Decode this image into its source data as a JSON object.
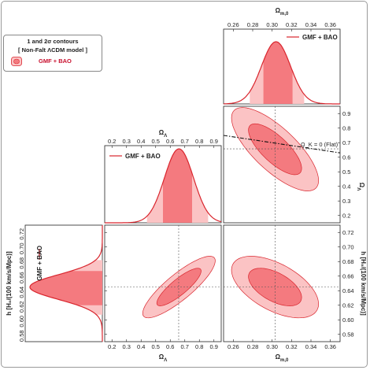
{
  "chart_data": {
    "type": "corner",
    "colors": {
      "line": "#d9252d",
      "fill1": "#f47a7f",
      "fill2": "#fbc3c4",
      "dash": "#555555"
    },
    "parameters": {
      "om": {
        "label": "Ω_{m,0}",
        "range": [
          0.25,
          0.37
        ],
        "ticks": [
          "0.26",
          "0.28",
          "0.30",
          "0.32",
          "0.34",
          "0.36"
        ]
      },
      "ol": {
        "label": "Ω_Λ",
        "range": [
          0.15,
          0.95
        ],
        "ticks": [
          "0.2",
          "0.3",
          "0.4",
          "0.5",
          "0.6",
          "0.7",
          "0.8",
          "0.9"
        ]
      },
      "h": {
        "label": "h [H_0/(100 km/s/Mpc)]",
        "range": [
          0.57,
          0.73
        ],
        "ticks": [
          "0.58",
          "0.60",
          "0.62",
          "0.64",
          "0.66",
          "0.68",
          "0.70",
          "0.72"
        ]
      }
    },
    "legend": {
      "title": "1 and 2σ contours",
      "model": "[ Non-Falt ΛCDM model ]",
      "entry": "GMF + BAO"
    },
    "marginals": [
      {
        "param": "om",
        "mean": 0.304,
        "sigma": 0.015,
        "band1": [
          0.291,
          0.321
        ],
        "band2": [
          0.277,
          0.333
        ],
        "label": "GMF + BAO"
      },
      {
        "param": "ol",
        "mean": 0.66,
        "sigma": 0.1,
        "band1": [
          0.55,
          0.75
        ],
        "band2": [
          0.44,
          0.86
        ],
        "label": "GMF + BAO"
      },
      {
        "param": "h",
        "mean": 0.645,
        "sigma": 0.017,
        "band1": [
          0.62,
          0.667
        ],
        "band2": [
          0.607,
          0.682
        ],
        "label": "GMF + BAO"
      }
    ],
    "contours": [
      {
        "x": "om",
        "y": "ol",
        "center": [
          0.303,
          0.655
        ],
        "sx": 0.018,
        "sy": 0.115,
        "rho": -0.75
      },
      {
        "x": "ol",
        "y": "h",
        "center": [
          0.66,
          0.645
        ],
        "sx": 0.1,
        "sy": 0.017,
        "rho": 0.85
      },
      {
        "x": "om",
        "y": "h",
        "center": [
          0.303,
          0.645
        ],
        "sx": 0.018,
        "sy": 0.017,
        "rho": -0.55
      }
    ],
    "crosshair": {
      "om": 0.303,
      "ol": 0.658,
      "h": 0.645
    },
    "flat_line": {
      "label": "Ω_K = 0 (Flat)",
      "relation": "ol = 1 - om"
    }
  }
}
